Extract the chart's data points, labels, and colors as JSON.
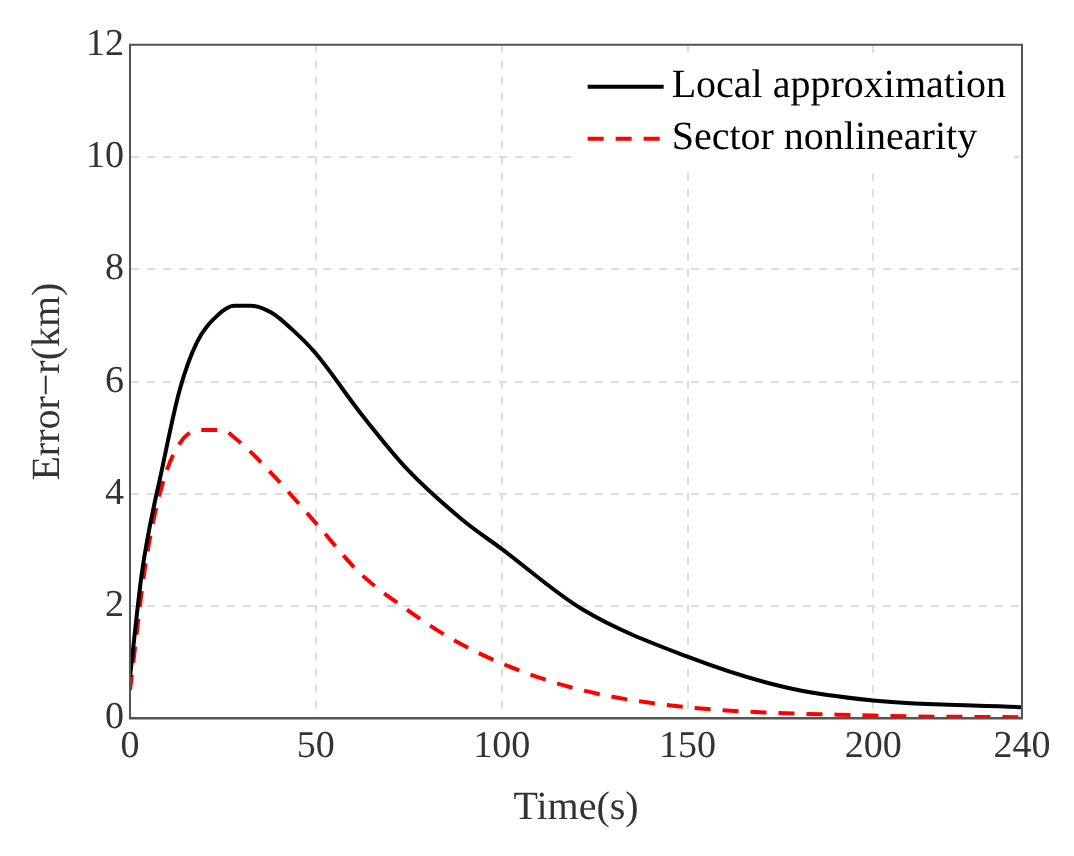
{
  "chart_data": {
    "type": "line",
    "xlabel": "Time(s)",
    "ylabel": "Error−r(km)",
    "xlim": [
      0,
      240
    ],
    "xticks": [
      0,
      50,
      100,
      150,
      200,
      240
    ],
    "ylim": [
      0,
      12
    ],
    "yticks": [
      0,
      2,
      4,
      6,
      8,
      10,
      12
    ],
    "grid": true,
    "legend": "top right",
    "marker": "none",
    "series": [
      {
        "name": "Local approximation",
        "color": "#000000",
        "line_style": "solid",
        "x": [
          0,
          3.3,
          8.8,
          13.4,
          18,
          23.4,
          28,
          32.6,
          38,
          43.6,
          50,
          62,
          74.7,
          89.4,
          100,
          121.8,
          150,
          176,
          200,
          240
        ],
        "values": [
          0.74,
          2.64,
          4.5,
          5.86,
          6.7,
          7.17,
          7.35,
          7.35,
          7.23,
          6.93,
          6.5,
          5.44,
          4.43,
          3.54,
          3.02,
          1.94,
          1.1,
          0.56,
          0.32,
          0.2
        ]
      },
      {
        "name": "Sector nonlinearity",
        "color": "#ff0000",
        "line_style": "dashed",
        "x": [
          0,
          4.2,
          8.8,
          13.4,
          18.9,
          24.4,
          29.9,
          38,
          50,
          62,
          74.7,
          85.7,
          100,
          121.8,
          150,
          200,
          240
        ],
        "values": [
          0.5,
          2.76,
          4.19,
          4.9,
          5.14,
          5.14,
          4.9,
          4.37,
          3.48,
          2.58,
          1.93,
          1.45,
          0.98,
          0.5,
          0.2,
          0.05,
          0.02
        ]
      }
    ]
  }
}
